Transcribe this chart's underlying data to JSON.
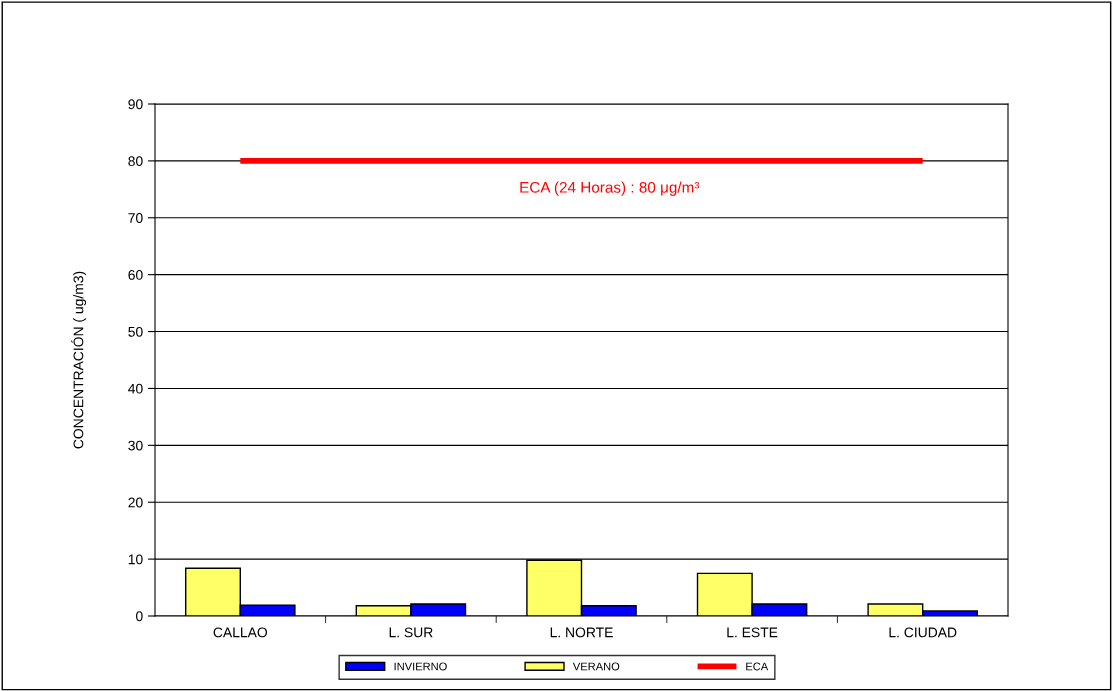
{
  "chart_data": {
    "type": "bar",
    "ylabel": "CONCENTRACIÓN ( ug/m3)",
    "categories": [
      "CALLAO",
      "L. SUR",
      "L. NORTE",
      "L. ESTE",
      "L. CIUDAD"
    ],
    "series": [
      {
        "name": "VERANO",
        "color": "#ffff66",
        "values": [
          8.4,
          1.8,
          9.8,
          7.5,
          2.1
        ]
      },
      {
        "name": "INVIERNO",
        "color": "#0000ff",
        "values": [
          1.9,
          2.1,
          1.8,
          2.1,
          0.9
        ]
      },
      {
        "name": "ECA",
        "type": "line",
        "color": "#ff0000",
        "values": [
          80,
          80,
          80,
          80,
          80
        ]
      }
    ],
    "annotations": [
      {
        "text": "ECA (24 Horas) : 80 μg/m³",
        "x": "L. NORTE",
        "y": 80
      }
    ],
    "ylim": [
      0,
      90
    ],
    "yticks": [
      0,
      10,
      20,
      30,
      40,
      50,
      60,
      70,
      80,
      90
    ],
    "grid": "y",
    "legend": "bottom"
  }
}
